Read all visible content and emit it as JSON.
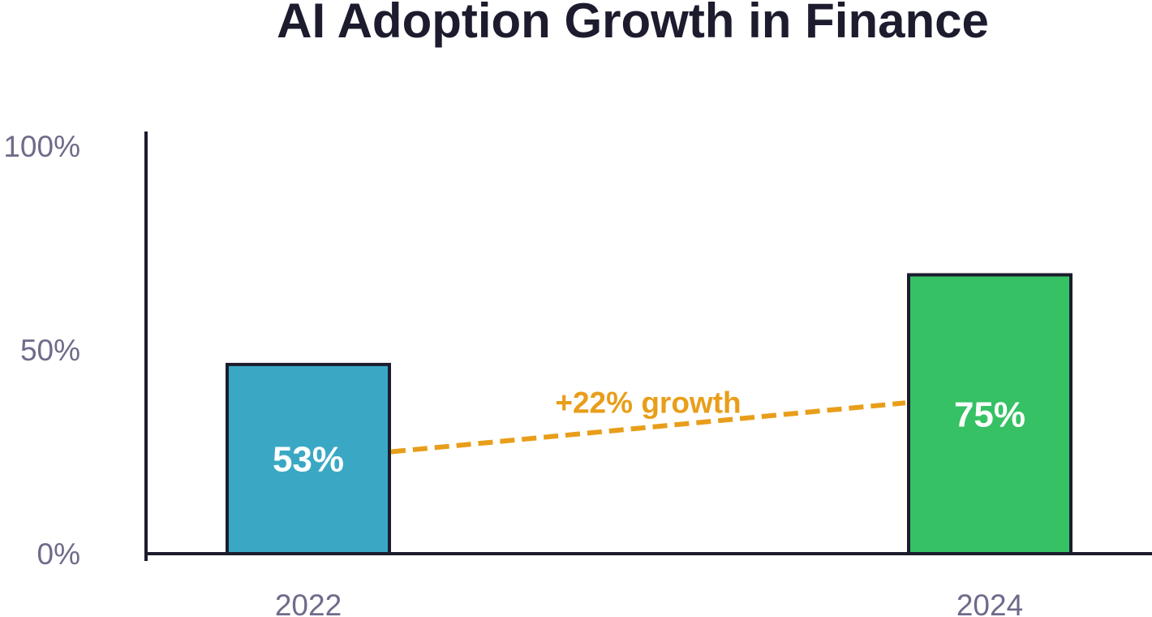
{
  "chart_data": {
    "type": "bar",
    "title": "AI Adoption Growth in Finance",
    "categories": [
      "2022",
      "2024"
    ],
    "values": [
      53,
      75
    ],
    "value_labels": [
      "53%",
      "75%"
    ],
    "ylim": [
      0,
      100
    ],
    "yticks": [
      {
        "value": 0,
        "label": "0%"
      },
      {
        "value": 50,
        "label": "50%"
      },
      {
        "value": 100,
        "label": "100%"
      }
    ],
    "colors": [
      "#3aa8c4",
      "#36c164"
    ],
    "annotation": {
      "text": "+22% growth",
      "color": "#e89e1a",
      "from": 25,
      "to": 37
    },
    "grid": false,
    "legend": "none"
  }
}
